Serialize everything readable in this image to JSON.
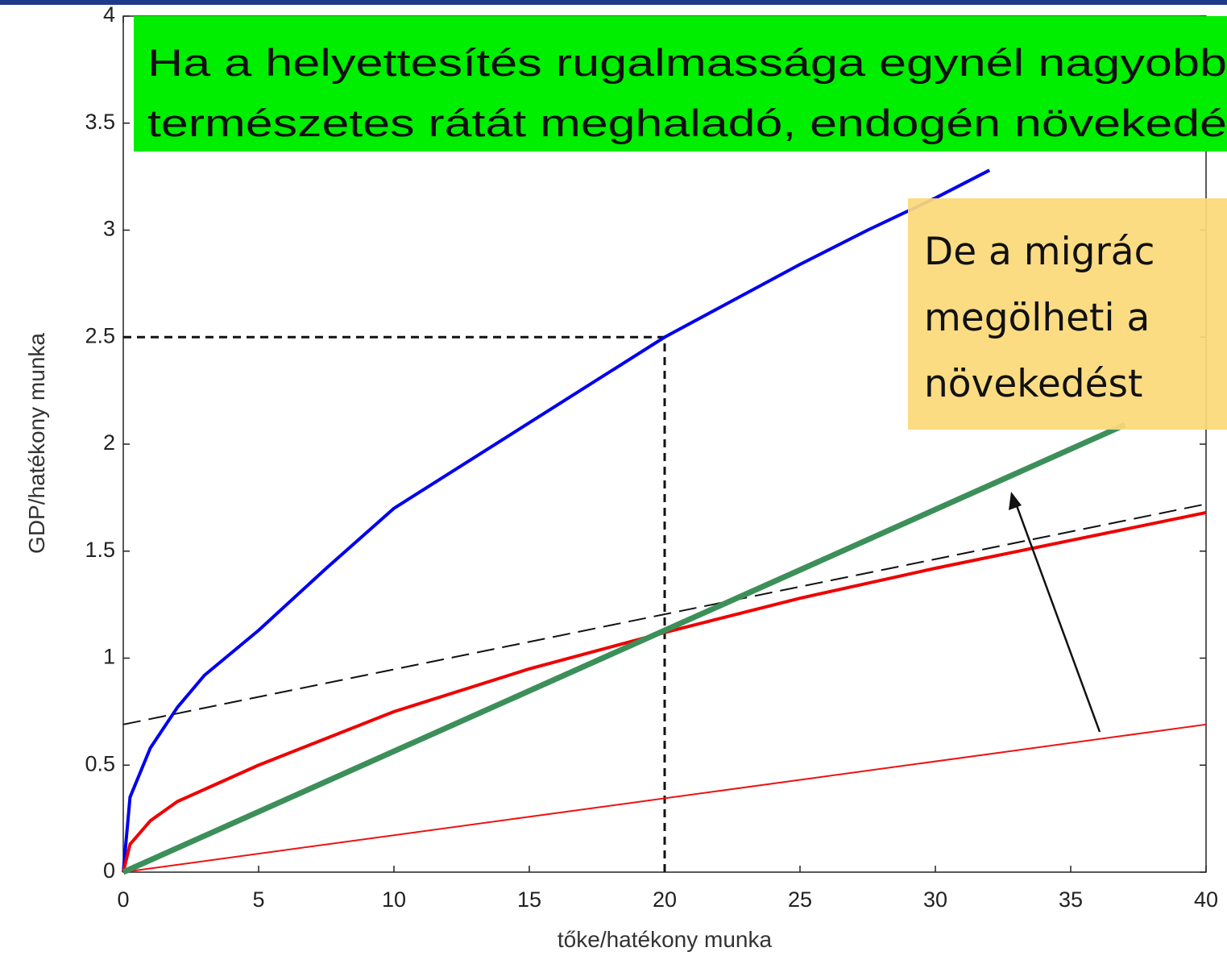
{
  "chart_data": {
    "type": "line",
    "xlabel": "tőke/hatékony munka",
    "ylabel": "GDP/hatékony munka",
    "xlim": [
      0,
      40
    ],
    "ylim": [
      0,
      4
    ],
    "xticks": [
      0,
      5,
      10,
      15,
      20,
      25,
      30,
      35,
      40
    ],
    "yticks": [
      0,
      0.5,
      1,
      1.5,
      2,
      2.5,
      3,
      3.5,
      4
    ],
    "series": [
      {
        "color": "#0000ee",
        "width": 4,
        "style": "solid",
        "x": [
          0,
          0.25,
          1,
          2,
          3,
          5,
          7.5,
          10,
          12.5,
          15,
          17.5,
          20,
          22.5,
          25,
          27.5,
          30,
          32
        ],
        "values": [
          0,
          0.35,
          0.58,
          0.77,
          0.92,
          1.13,
          1.42,
          1.7,
          1.9,
          2.1,
          2.3,
          2.5,
          2.67,
          2.84,
          3.0,
          3.15,
          3.28
        ]
      },
      {
        "color": "#ee0000",
        "width": 4,
        "style": "solid",
        "x": [
          0,
          0.25,
          1,
          2,
          5,
          10,
          15,
          20,
          25,
          30,
          35,
          40
        ],
        "values": [
          0,
          0.13,
          0.24,
          0.33,
          0.5,
          0.75,
          0.95,
          1.12,
          1.28,
          1.42,
          1.55,
          1.68
        ]
      },
      {
        "color": "#111111",
        "width": 2,
        "style": "dashed",
        "x": [
          0,
          40
        ],
        "values": [
          0.69,
          1.72
        ]
      },
      {
        "color": "#ee1111",
        "width": 2,
        "style": "solid",
        "x": [
          0,
          40
        ],
        "values": [
          0,
          0.69
        ]
      },
      {
        "color": "#3d8f5a",
        "width": 7,
        "style": "solid",
        "x": [
          0,
          37
        ],
        "values": [
          0,
          2.09
        ]
      }
    ],
    "guide": {
      "x": 20,
      "y": 2.5
    },
    "annotations": {
      "green_box": [
        "Ha a helyettesítés rugalmassága egynél nagyobb",
        "természetes rátát meghaladó, endogén növekedé"
      ],
      "yellow_box": [
        "De a migrác",
        "megölheti a",
        "növekedést"
      ]
    }
  }
}
